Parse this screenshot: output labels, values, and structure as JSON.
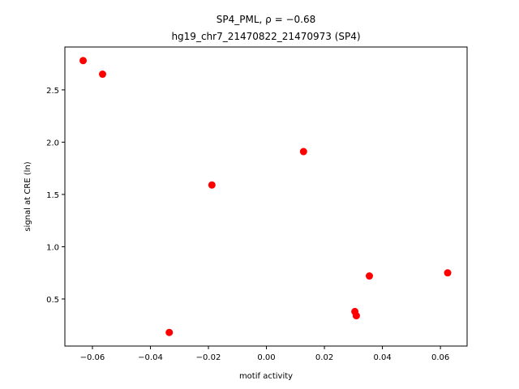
{
  "chart_data": {
    "type": "scatter",
    "title_line1": "SP4_PML, ρ = −0.68",
    "title_line2": "hg19_chr7_21470822_21470973 (SP4)",
    "xlabel": "motif activity",
    "ylabel": "signal at CRE (ln)",
    "xlim": [
      -0.0695,
      0.0692
    ],
    "ylim": [
      0.05,
      2.91
    ],
    "x_ticks": [
      -0.06,
      -0.04,
      -0.02,
      0.0,
      0.02,
      0.04,
      0.06
    ],
    "x_tick_labels": [
      "−0.06",
      "−0.04",
      "−0.02",
      "0.00",
      "0.02",
      "0.04",
      "0.06"
    ],
    "y_ticks": [
      0.5,
      1.0,
      1.5,
      2.0,
      2.5
    ],
    "y_tick_labels": [
      "0.5",
      "1.0",
      "1.5",
      "2.0",
      "2.5"
    ],
    "grid": false,
    "marker_color": "#ff0000",
    "points": [
      {
        "x": -0.0632,
        "y": 2.78
      },
      {
        "x": -0.0565,
        "y": 2.65
      },
      {
        "x": -0.0335,
        "y": 0.18
      },
      {
        "x": -0.0188,
        "y": 1.59
      },
      {
        "x": 0.0128,
        "y": 1.91
      },
      {
        "x": 0.0305,
        "y": 0.38
      },
      {
        "x": 0.031,
        "y": 0.34
      },
      {
        "x": 0.0355,
        "y": 0.72
      },
      {
        "x": 0.0625,
        "y": 0.75
      }
    ]
  }
}
